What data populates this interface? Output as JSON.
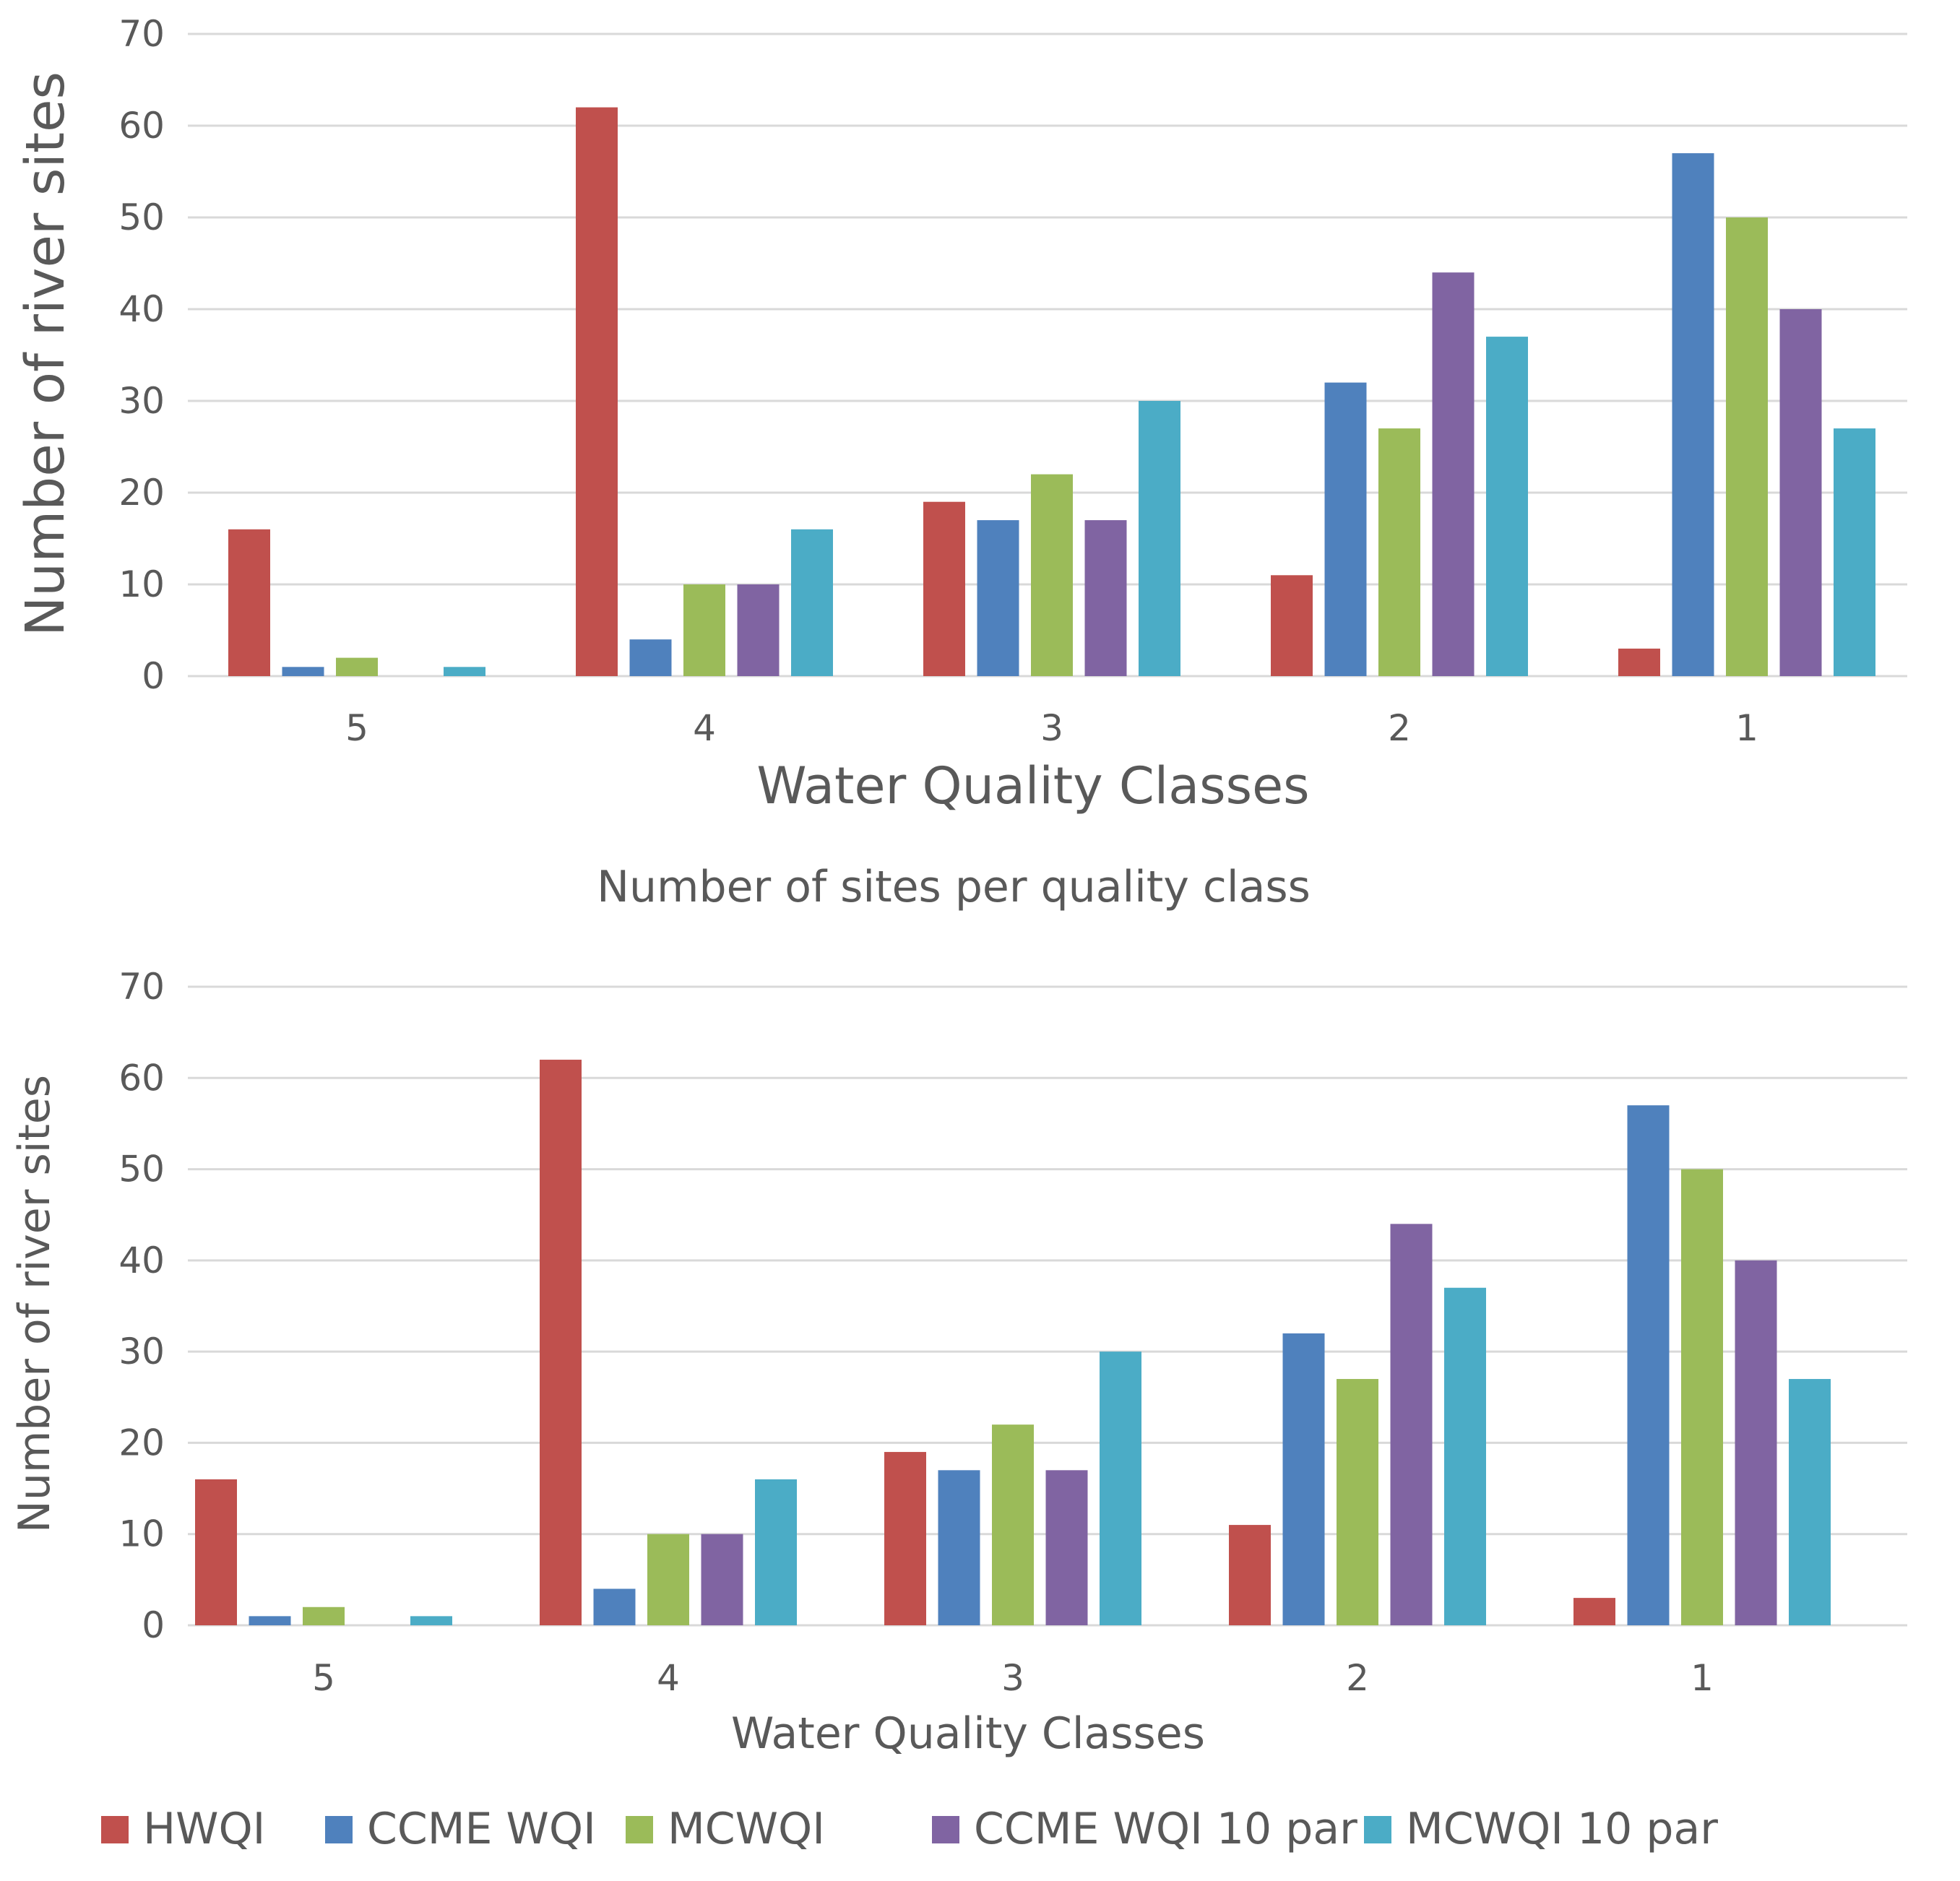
{
  "chart_data": [
    {
      "type": "bar",
      "title": "",
      "xlabel": "Water Quality Classes",
      "ylabel": "Number of river sites",
      "ylim": [
        0,
        70
      ],
      "yticks": [
        0,
        10,
        20,
        30,
        40,
        50,
        60,
        70
      ],
      "categories": [
        "5",
        "4",
        "3",
        "2",
        "1"
      ],
      "series": [
        {
          "name": "HWQI",
          "color": "#c0504d",
          "values": [
            16,
            62,
            19,
            11,
            3
          ]
        },
        {
          "name": "CCME WQI",
          "color": "#4f81bd",
          "values": [
            1,
            4,
            17,
            32,
            57
          ]
        },
        {
          "name": "MCWQI",
          "color": "#9bbb59",
          "values": [
            2,
            10,
            22,
            27,
            50
          ]
        },
        {
          "name": "CCME WQI 10 par",
          "color": "#8064a2",
          "values": [
            0,
            10,
            17,
            44,
            40
          ]
        },
        {
          "name": "MCWQI 10 par",
          "color": "#4bacc6",
          "values": [
            1,
            16,
            30,
            37,
            27
          ]
        }
      ],
      "legend": "none"
    },
    {
      "type": "bar",
      "title": "Number of sites per quality class",
      "xlabel": "Water Quality Classes",
      "ylabel": "Number of river sites",
      "ylim": [
        0,
        70
      ],
      "yticks": [
        0,
        10,
        20,
        30,
        40,
        50,
        60,
        70
      ],
      "categories": [
        "5",
        "4",
        "3",
        "2",
        "1"
      ],
      "series": [
        {
          "name": "HWQI",
          "color": "#c0504d",
          "values": [
            16,
            62,
            19,
            11,
            3
          ]
        },
        {
          "name": "CCME WQI",
          "color": "#4f81bd",
          "values": [
            1,
            4,
            17,
            32,
            57
          ]
        },
        {
          "name": "MCWQI",
          "color": "#9bbb59",
          "values": [
            2,
            10,
            22,
            27,
            50
          ]
        },
        {
          "name": "CCME WQI 10 par",
          "color": "#8064a2",
          "values": [
            0,
            10,
            17,
            44,
            40
          ]
        },
        {
          "name": "MCWQI 10 par",
          "color": "#4bacc6",
          "values": [
            1,
            16,
            30,
            37,
            27
          ]
        }
      ],
      "legend": "bottom"
    }
  ]
}
